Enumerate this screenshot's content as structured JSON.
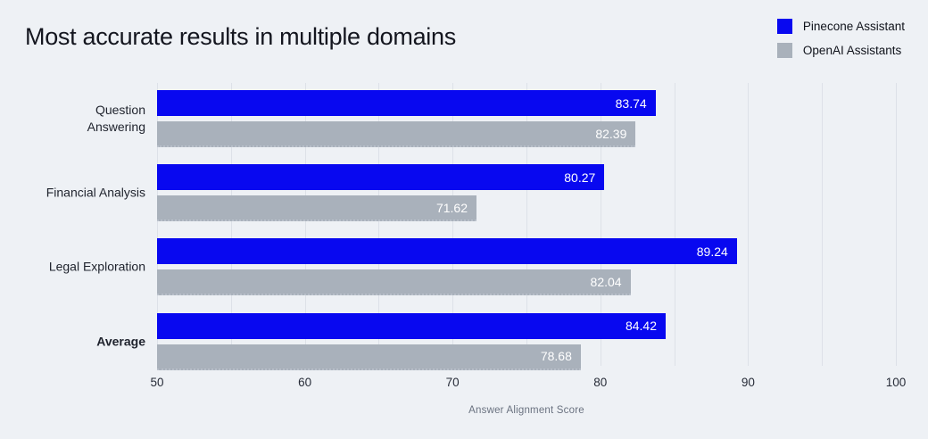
{
  "page": {
    "background": "#EEF1F5"
  },
  "header": {
    "title": "Most accurate results in multiple domains"
  },
  "legend": {
    "position": "top-right",
    "items": [
      {
        "label": "Pinecone Assistant",
        "color": "#0808F0"
      },
      {
        "label": "OpenAI Assistants",
        "color": "#A9B1BB"
      }
    ]
  },
  "chart_data": {
    "type": "bar",
    "orientation": "horizontal",
    "title": "Most accurate results in multiple domains",
    "xlabel": "Answer Alignment Score",
    "xlim": [
      50,
      100
    ],
    "xticks": [
      50,
      60,
      70,
      80,
      90,
      100
    ],
    "grid": {
      "vertical": true,
      "step": 5,
      "color": "#DDE1E8"
    },
    "legend_position": "top-right",
    "categories": [
      {
        "label": "Question Answering",
        "display": "Question\nAnswering",
        "bold": false
      },
      {
        "label": "Financial Analysis",
        "display": "Financial Analysis",
        "bold": false
      },
      {
        "label": "Legal Exploration",
        "display": "Legal Exploration",
        "bold": false
      },
      {
        "label": "Average",
        "display": "Average",
        "bold": true
      }
    ],
    "series": [
      {
        "name": "Pinecone Assistant",
        "color": "#0808F0",
        "values": [
          83.74,
          80.27,
          89.24,
          84.42
        ]
      },
      {
        "name": "OpenAI Assistants",
        "color": "#A9B1BB",
        "values": [
          82.39,
          71.62,
          82.04,
          78.68
        ]
      }
    ],
    "value_labels": {
      "position": "inside-end",
      "color": "#FFFFFF",
      "decimals": 2
    }
  }
}
